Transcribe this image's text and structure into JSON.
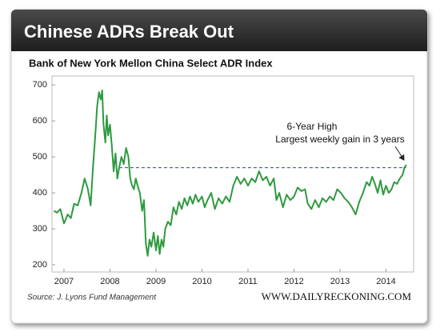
{
  "chart_data": {
    "type": "line",
    "title": "Chinese ADRs Break Out",
    "subtitle": "Bank of New York Mellon China Select ADR Index",
    "source": "Source: J. Lyons Fund Management",
    "website": "WWW.DAILYRECKONING.COM",
    "annotation": [
      "6-Year High",
      "Largest weekly gain in 3 years"
    ],
    "reference_line": {
      "value": 470,
      "from": 2008.2
    },
    "xlim": [
      2006.74,
      2014.6
    ],
    "xticks": [
      2007,
      2008,
      2009,
      2010,
      2011,
      2012,
      2013,
      2014
    ],
    "ylim": [
      180,
      725
    ],
    "yticks": [
      200,
      300,
      400,
      500,
      600,
      700
    ],
    "color": "#2e9a3f",
    "x": [
      2006.78,
      2006.85,
      2006.92,
      2007.0,
      2007.08,
      2007.15,
      2007.22,
      2007.3,
      2007.38,
      2007.45,
      2007.52,
      2007.58,
      2007.63,
      2007.68,
      2007.72,
      2007.76,
      2007.8,
      2007.83,
      2007.86,
      2007.9,
      2007.93,
      2007.96,
      2008.0,
      2008.04,
      2008.08,
      2008.12,
      2008.16,
      2008.2,
      2008.25,
      2008.3,
      2008.35,
      2008.4,
      2008.44,
      2008.48,
      2008.52,
      2008.56,
      2008.6,
      2008.65,
      2008.7,
      2008.74,
      2008.78,
      2008.82,
      2008.86,
      2008.9,
      2008.95,
      2009.0,
      2009.04,
      2009.08,
      2009.12,
      2009.16,
      2009.2,
      2009.26,
      2009.32,
      2009.38,
      2009.44,
      2009.5,
      2009.56,
      2009.62,
      2009.68,
      2009.74,
      2009.8,
      2009.86,
      2009.92,
      2010.0,
      2010.06,
      2010.12,
      2010.2,
      2010.28,
      2010.36,
      2010.44,
      2010.52,
      2010.6,
      2010.68,
      2010.76,
      2010.84,
      2010.92,
      2011.0,
      2011.08,
      2011.16,
      2011.24,
      2011.32,
      2011.4,
      2011.48,
      2011.56,
      2011.62,
      2011.68,
      2011.76,
      2011.84,
      2011.92,
      2012.0,
      2012.08,
      2012.16,
      2012.24,
      2012.3,
      2012.38,
      2012.46,
      2012.54,
      2012.62,
      2012.7,
      2012.78,
      2012.86,
      2012.94,
      2013.02,
      2013.1,
      2013.18,
      2013.26,
      2013.34,
      2013.42,
      2013.5,
      2013.58,
      2013.64,
      2013.7,
      2013.76,
      2013.82,
      2013.88,
      2013.94,
      2014.0,
      2014.06,
      2014.12,
      2014.18,
      2014.24,
      2014.3,
      2014.36,
      2014.4,
      2014.44
    ],
    "values": [
      350,
      345,
      355,
      315,
      340,
      330,
      370,
      365,
      400,
      440,
      410,
      365,
      470,
      560,
      640,
      680,
      660,
      685,
      590,
      540,
      615,
      560,
      590,
      530,
      460,
      510,
      440,
      470,
      500,
      480,
      525,
      500,
      440,
      420,
      410,
      440,
      420,
      400,
      350,
      380,
      260,
      225,
      270,
      250,
      290,
      240,
      280,
      230,
      270,
      250,
      300,
      320,
      310,
      360,
      340,
      375,
      355,
      385,
      365,
      390,
      370,
      395,
      375,
      390,
      360,
      380,
      400,
      355,
      385,
      370,
      390,
      375,
      420,
      445,
      425,
      440,
      420,
      440,
      430,
      460,
      435,
      445,
      420,
      440,
      380,
      400,
      360,
      395,
      380,
      390,
      415,
      405,
      410,
      370,
      355,
      380,
      360,
      385,
      375,
      390,
      380,
      410,
      400,
      385,
      375,
      360,
      340,
      375,
      400,
      430,
      420,
      445,
      425,
      400,
      435,
      395,
      420,
      400,
      410,
      430,
      425,
      440,
      450,
      470,
      478
    ]
  }
}
